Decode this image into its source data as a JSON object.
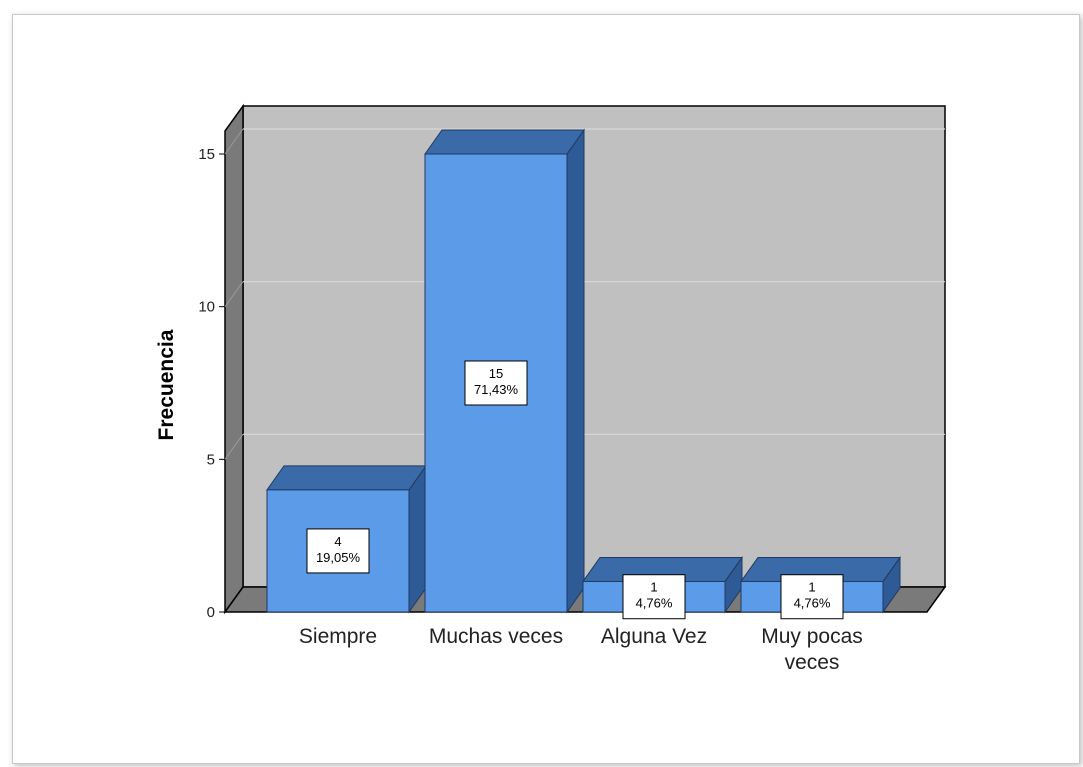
{
  "chart_data": {
    "type": "bar",
    "title": "",
    "xlabel": "",
    "ylabel": "Frecuencia",
    "ylim": [
      0,
      15
    ],
    "yticks": [
      0,
      5,
      10,
      15
    ],
    "grid": true,
    "style": "3d",
    "categories": [
      [
        "Siempre"
      ],
      [
        "Muchas veces"
      ],
      [
        "Alguna Vez"
      ],
      [
        "Muy pocas",
        "veces"
      ]
    ],
    "values": [
      4,
      15,
      1,
      1
    ],
    "data_labels": [
      [
        "4",
        "19,05%"
      ],
      [
        "15",
        "71,43%"
      ],
      [
        "1",
        "4,76%"
      ],
      [
        "1",
        "4,76%"
      ]
    ],
    "colors": {
      "bar_front": "#5b9be8",
      "bar_top": "#3a6aa8",
      "bar_side": "#2e5a96",
      "back_wall": "#c0c0c0",
      "side_wall": "#7a7a7a",
      "floor": "#7a7a7a",
      "grid": "#d8d8d8"
    }
  }
}
